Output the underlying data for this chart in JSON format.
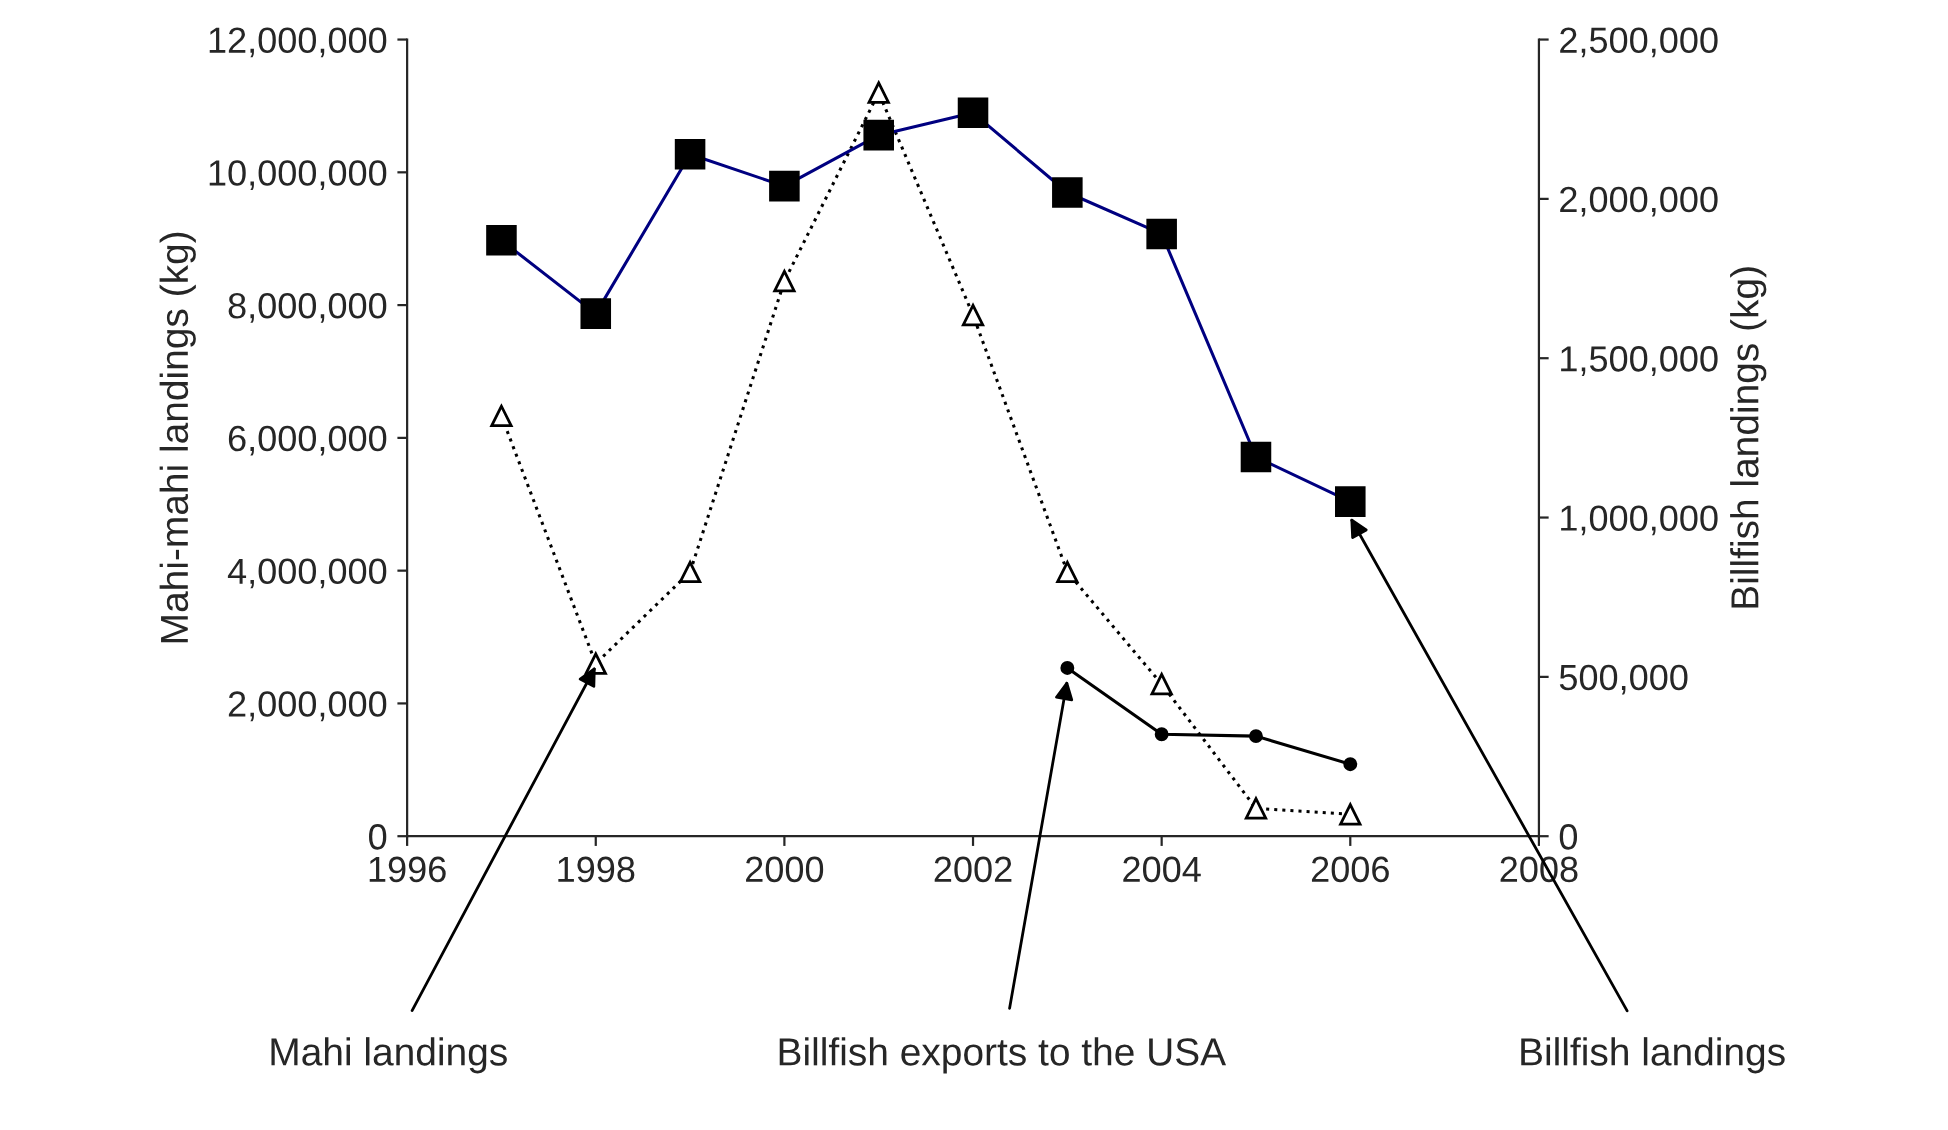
{
  "chart_data": {
    "type": "line",
    "ylabel": "Mahi-mahi landings (kg)",
    "y2label": "Billfish landings (kg)",
    "xlim": [
      1996,
      2008
    ],
    "xticks": [
      1996,
      1998,
      2000,
      2002,
      2004,
      2006,
      2008
    ],
    "ylim": [
      0,
      12000000
    ],
    "yticks": [
      {
        "value": 0,
        "label": "0"
      },
      {
        "value": 2000000,
        "label": "2,000,000"
      },
      {
        "value": 4000000,
        "label": "4,000,000"
      },
      {
        "value": 6000000,
        "label": "6,000,000"
      },
      {
        "value": 8000000,
        "label": "8,000,000"
      },
      {
        "value": 10000000,
        "label": "10,000,000"
      },
      {
        "value": 12000000,
        "label": "12,000,000"
      }
    ],
    "y2lim": [
      0,
      2500000
    ],
    "y2ticks": [
      {
        "value": 0,
        "label": "0"
      },
      {
        "value": 500000,
        "label": "500,000"
      },
      {
        "value": 1000000,
        "label": "1,000,000"
      },
      {
        "value": 1500000,
        "label": "1,500,000"
      },
      {
        "value": 2000000,
        "label": "2,000,000"
      },
      {
        "value": 2500000,
        "label": "2,500,000"
      }
    ],
    "grid": false,
    "legend": false,
    "series": [
      {
        "color": "#000080",
        "axis": "y2",
        "marker": "square",
        "line_style": "solid",
        "x": [
          1997,
          1998,
          1999,
          2000,
          2001,
          2002,
          2003,
          2004,
          2005,
          2006
        ],
        "values": [
          1870000,
          1640000,
          2140000,
          2040000,
          2200000,
          2270000,
          2020000,
          1890000,
          1190000,
          1050000
        ]
      },
      {
        "color": "#000000",
        "axis": "y",
        "marker": "triangle",
        "line_style": "dotted",
        "x": [
          1997,
          1998,
          1999,
          2000,
          2001,
          2002,
          2003,
          2004,
          2005,
          2006
        ],
        "values": [
          6330000,
          2600000,
          3980000,
          8360000,
          11200000,
          7850000,
          3980000,
          2290000,
          420000,
          330000
        ]
      },
      {
        "color": "#000000",
        "axis": "y2",
        "marker": "circle",
        "line_style": "solid",
        "x": [
          2003,
          2004,
          2005,
          2006
        ],
        "values": [
          528000,
          320000,
          314000,
          226000
        ]
      }
    ],
    "annotations": [
      {
        "text": "Mahi landings",
        "x": 1998,
        "y": 2560000
      },
      {
        "text": "Billfish exports to the USA",
        "x": 2003,
        "y": 2350000
      },
      {
        "text": "Billfish landings",
        "x": 2006,
        "y": 4800000
      }
    ]
  }
}
